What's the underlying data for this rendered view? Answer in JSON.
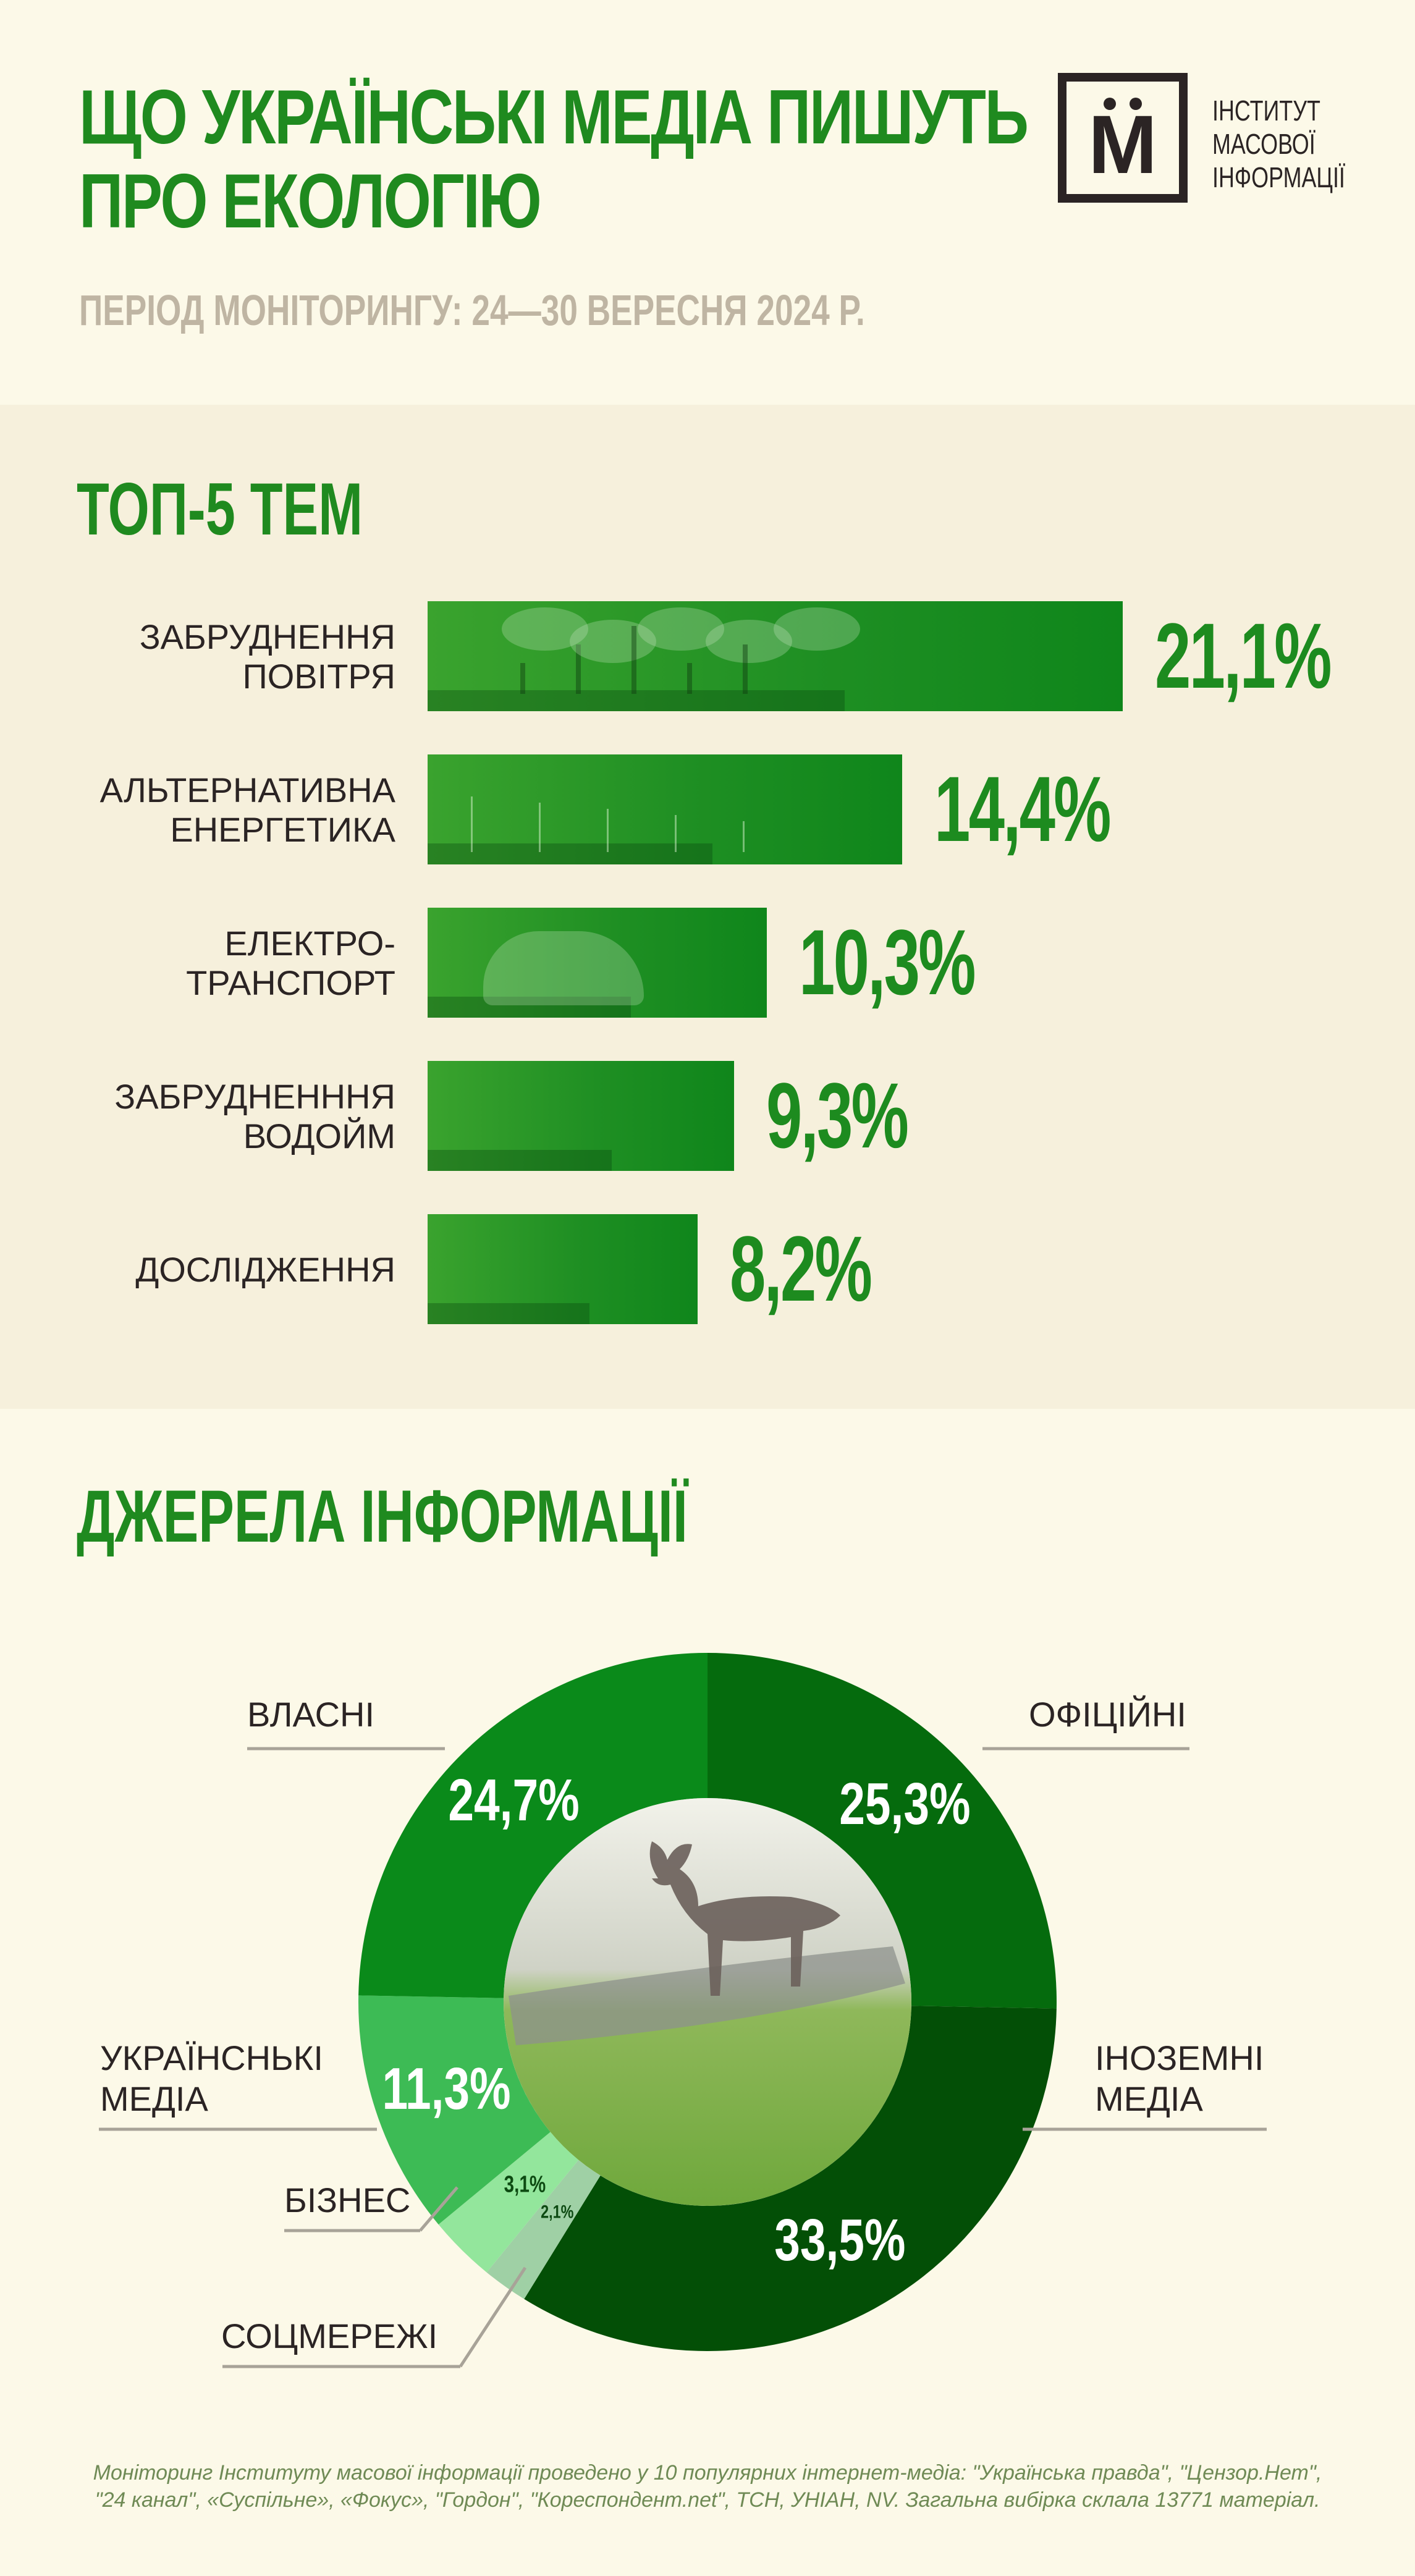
{
  "header": {
    "title_line1": "ЩО УКРАЇНСЬКІ МЕДІА ПИШУТЬ",
    "title_line2": "ПРО ЕКОЛОГІЮ",
    "period": "ПЕРІОД МОНІТОРИНГУ: 24—30 ВЕРЕСНЯ 2024 Р.",
    "logo_letter": "М",
    "logo_line1": "ІНСТИТУТ",
    "logo_line2": "МАСОВОЇ",
    "logo_line3": "ІНФОРМАЦІЇ"
  },
  "colors": {
    "title_green": "#1f8a1f",
    "bar_green": "#1f8f23",
    "donut_vlasni": "#0a8a1a",
    "donut_oficiini": "#056b0d",
    "donut_inozemni": "#034f06",
    "donut_ukrainski": "#3dbb55",
    "donut_biznes": "#93e69c",
    "donut_socmerezhi": "#9fd0a5"
  },
  "chart_data": [
    {
      "type": "bar",
      "title": "ТОП-5 ТЕМ",
      "orientation": "horizontal",
      "categories": [
        [
          "ЗАБРУДНЕННЯ",
          "ПОВІТРЯ"
        ],
        [
          "АЛЬТЕРНАТИВНА",
          "ЕНЕРГЕТИКА"
        ],
        [
          "ЕЛЕКТРО-",
          "ТРАНСПОРТ"
        ],
        [
          "ЗАБРУДНЕНННЯ",
          "ВОДОЙМ"
        ],
        [
          "ДОСЛІДЖЕННЯ"
        ]
      ],
      "values": [
        21.1,
        14.4,
        10.3,
        9.3,
        8.2
      ],
      "value_labels": [
        "21,1%",
        "14,4%",
        "10,3%",
        "9,3%",
        "8,2%"
      ],
      "xlim": [
        0,
        21.1
      ]
    },
    {
      "type": "pie",
      "style": "donut",
      "title": "ДЖЕРЕЛА ІНФОРМАЦІЇ",
      "slices": [
        {
          "label": [
            "ОФІЦІЙНІ"
          ],
          "value": 25.3,
          "value_label": "25,3%",
          "color": "#056b0d"
        },
        {
          "label": [
            "ІНОЗЕМНІ",
            "МЕДІА"
          ],
          "value": 33.5,
          "value_label": "33,5%",
          "color": "#034f06"
        },
        {
          "label": [
            "СОЦМЕРЕЖІ"
          ],
          "value": 2.1,
          "value_label": "2,1%",
          "color": "#9fd0a5"
        },
        {
          "label": [
            "БІЗНЕС"
          ],
          "value": 3.1,
          "value_label": "3,1%",
          "color": "#93e69c"
        },
        {
          "label": [
            "УКРАЇНСНЬКІ",
            "МЕДІА"
          ],
          "value": 11.3,
          "value_label": "11,3%",
          "color": "#3dbb55"
        },
        {
          "label": [
            "ВЛАСНІ"
          ],
          "value": 24.7,
          "value_label": "24,7%",
          "color": "#0a8a1a"
        }
      ],
      "legend": "callout-lines"
    }
  ],
  "footnote": {
    "line1": "Моніторинг Інституту масової інформації проведено у 10 популярних інтернет-медіа: \"Українська правда\", \"Цензор.Нет\",",
    "line2": "\"24 канал\", «Суспільне», «Фокус», \"Гордон\", \"Кореспондент.net\", ТСН, УНІАН, NV. Загальна вибірка склала 13771 матеріал."
  }
}
